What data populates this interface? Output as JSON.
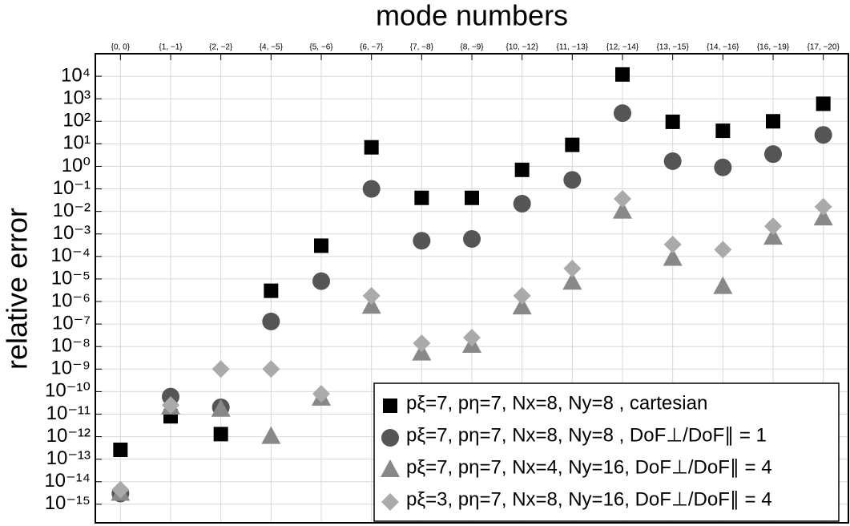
{
  "chart_data": {
    "type": "scatter",
    "title": "mode numbers",
    "y_label": "relative error",
    "categories": [
      "{0, 0}",
      "{1, −1}",
      "{2, −2}",
      "{4, −5}",
      "{5, −6}",
      "{6, −7}",
      "{7, −8}",
      "{8, −9}",
      "{10, −12}",
      "{11, −13}",
      "{12, −14}",
      "{13, −15}",
      "{14, −16}",
      "{16, −19}",
      "{17, −20}"
    ],
    "log_y": true,
    "grid": true,
    "ylim": [
      1.5e-16,
      100000.0
    ],
    "yticks": [
      {
        "value": 1e-15,
        "label": "10⁻¹⁵"
      },
      {
        "value": 1e-14,
        "label": "10⁻¹⁴"
      },
      {
        "value": 1e-13,
        "label": "10⁻¹³"
      },
      {
        "value": 1e-12,
        "label": "10⁻¹²"
      },
      {
        "value": 1e-11,
        "label": "10⁻¹¹"
      },
      {
        "value": 1e-10,
        "label": "10⁻¹⁰"
      },
      {
        "value": 1e-09,
        "label": "10⁻⁹"
      },
      {
        "value": 1e-08,
        "label": "10⁻⁸"
      },
      {
        "value": 1e-07,
        "label": "10⁻⁷"
      },
      {
        "value": 1e-06,
        "label": "10⁻⁶"
      },
      {
        "value": 1e-05,
        "label": "10⁻⁵"
      },
      {
        "value": 0.0001,
        "label": "10⁻⁴"
      },
      {
        "value": 0.001,
        "label": "10⁻³"
      },
      {
        "value": 0.01,
        "label": "10⁻²"
      },
      {
        "value": 0.1,
        "label": "10⁻¹"
      },
      {
        "value": 1,
        "label": "10⁰"
      },
      {
        "value": 10,
        "label": "10¹"
      },
      {
        "value": 100,
        "label": "10²"
      },
      {
        "value": 1000,
        "label": "10³"
      },
      {
        "value": 10000,
        "label": "10⁴"
      }
    ],
    "legend_position": "lower right",
    "series": [
      {
        "name": "pξ=7, pη=7, Nx=8, Ny=8  , cartesian",
        "marker": "square",
        "color": "#000000",
        "values": [
          2.6e-13,
          8e-12,
          1.3e-12,
          3e-06,
          0.0003,
          7,
          0.04,
          0.04,
          0.7,
          9,
          12000,
          95,
          38,
          100,
          600
        ]
      },
      {
        "name": "pξ=7, pη=7, Nx=8, Ny=8  , DoF⊥/DoF∥ = 1",
        "marker": "circle",
        "color": "#555555",
        "values": [
          3e-15,
          6e-11,
          2e-11,
          1.3e-07,
          8e-06,
          0.1,
          0.0005,
          0.0006,
          0.022,
          0.25,
          230,
          1.7,
          0.9,
          3.5,
          25
        ]
      },
      {
        "name": "pξ=7, pη=7, Nx=4, Ny=16, DoF⊥/DoF∥ = 4",
        "marker": "triangle",
        "color": "#888888",
        "values": [
          3e-15,
          2e-11,
          1.6e-11,
          1e-12,
          5e-11,
          6e-07,
          5e-09,
          1.1e-08,
          5.6e-07,
          7e-06,
          0.01,
          8e-05,
          4.5e-06,
          0.0007,
          0.005
        ]
      },
      {
        "name": "pξ=3, pη=7, Nx=8, Ny=16, DoF⊥/DoF∥ = 4",
        "marker": "diamond",
        "color": "#aaaaaa",
        "values": [
          4.4e-15,
          2.5e-11,
          1e-09,
          1e-09,
          8e-11,
          1.8e-06,
          1.4e-08,
          2.5e-08,
          1.8e-06,
          2.9e-05,
          0.036,
          0.00034,
          0.0002,
          0.0022,
          0.016
        ]
      }
    ]
  }
}
